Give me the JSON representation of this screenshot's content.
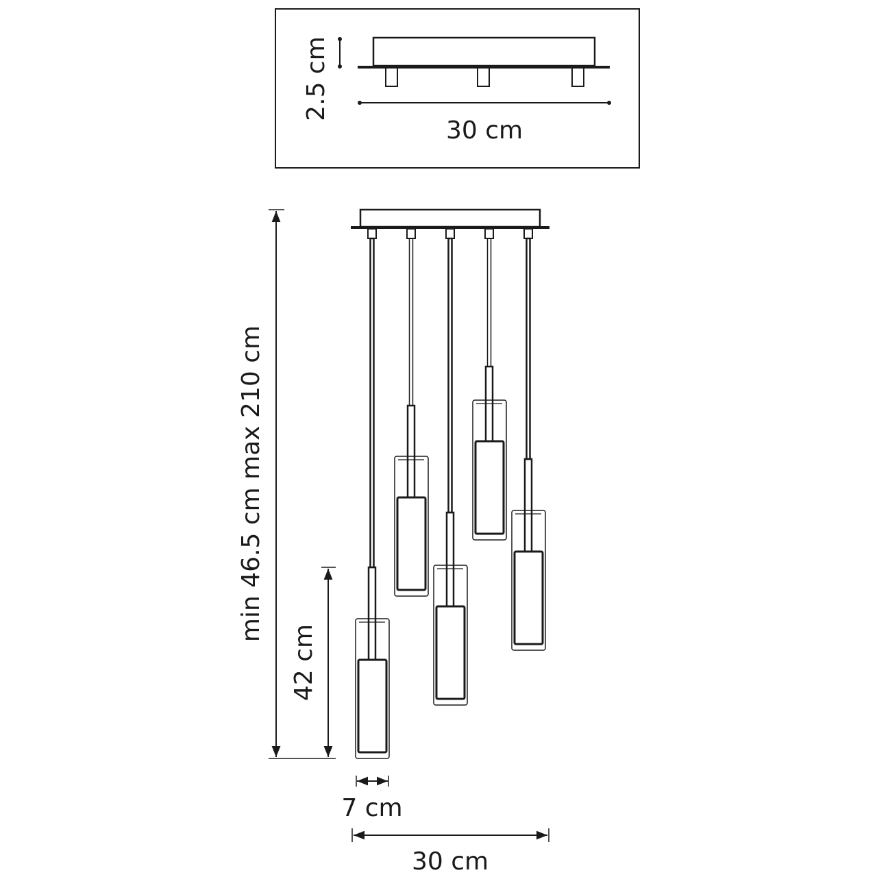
{
  "top_view": {
    "height_label": "2.5 cm",
    "width_label": "30 cm"
  },
  "main_view": {
    "total_height_label": "min 46.5 cm max 210 cm",
    "shade_height_label": "42 cm",
    "shade_width_label": "7 cm",
    "overall_width_label": "30 cm",
    "pendant_count": 5
  },
  "colors": {
    "line": "#1a1a1a",
    "background": "#ffffff"
  }
}
